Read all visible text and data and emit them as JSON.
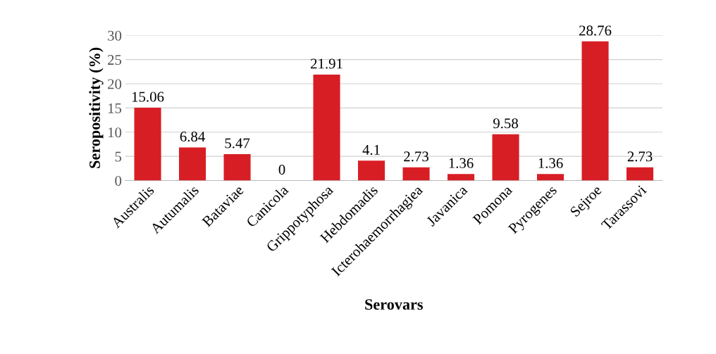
{
  "chart_data": {
    "type": "bar",
    "xlabel": "Serovars",
    "ylabel": "Seropositivity (%)",
    "categories": [
      "Australis",
      "Autumalis",
      "Bataviae",
      "Canicola",
      "Grippotyphosa",
      "Hebdomadis",
      "Icterohaemorrhagiea",
      "Javanica",
      "Pomona",
      "Pyrogenes",
      "Sejroe",
      "Tarassovi"
    ],
    "values": [
      15.06,
      6.84,
      5.47,
      0,
      21.91,
      4.1,
      2.73,
      1.36,
      9.58,
      1.36,
      28.76,
      2.73
    ],
    "color": "#d81e25",
    "ylim": [
      0,
      30
    ],
    "yticks": [
      0,
      5,
      10,
      15,
      20,
      25,
      30
    ],
    "grid": "y",
    "data_labels": true
  }
}
